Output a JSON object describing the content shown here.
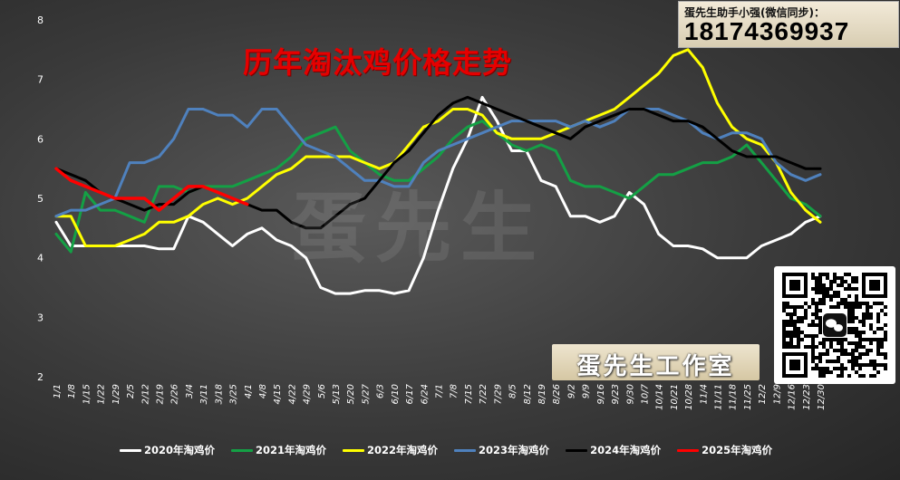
{
  "chart_data": {
    "type": "line",
    "title": "历年淘汰鸡价格走势",
    "xlabel": "",
    "ylabel": "",
    "ylim": [
      2,
      8
    ],
    "yticks": [
      "2",
      "3",
      "4",
      "5",
      "6",
      "7",
      "8"
    ],
    "x_tick_labels": [
      "1/1",
      "1/8",
      "1/15",
      "1/22",
      "1/29",
      "2/5",
      "2/12",
      "2/19",
      "2/26",
      "3/4",
      "3/11",
      "3/18",
      "3/25",
      "4/1",
      "4/8",
      "4/15",
      "4/22",
      "4/29",
      "5/6",
      "5/13",
      "5/20",
      "5/27",
      "6/3",
      "6/10",
      "6/17",
      "6/24",
      "7/1",
      "7/8",
      "7/15",
      "7/22",
      "7/29",
      "8/5",
      "8/12",
      "8/19",
      "8/26",
      "9/2",
      "9/9",
      "9/16",
      "9/23",
      "9/30",
      "10/7",
      "10/14",
      "10/21",
      "10/28",
      "11/4",
      "11/11",
      "11/18",
      "11/25",
      "12/2",
      "12/9",
      "12/16",
      "12/23",
      "12/30"
    ],
    "grid": false,
    "legend_position": "bottom",
    "series": [
      {
        "name": "2020年淘鸡价",
        "color": "#ffffff",
        "values": [
          4.6,
          4.2,
          4.2,
          4.2,
          4.2,
          4.2,
          4.2,
          4.15,
          4.15,
          4.7,
          4.6,
          4.4,
          4.2,
          4.4,
          4.5,
          4.3,
          4.2,
          4.0,
          3.5,
          3.4,
          3.4,
          3.45,
          3.45,
          3.4,
          3.45,
          4.0,
          4.8,
          5.5,
          6.0,
          6.7,
          6.3,
          5.8,
          5.8,
          5.3,
          5.2,
          4.7,
          4.7,
          4.6,
          4.7,
          5.1,
          4.9,
          4.4,
          4.2,
          4.2,
          4.15,
          4.0,
          4.0,
          4.0,
          4.2,
          4.3,
          4.4,
          4.6,
          4.7
        ]
      },
      {
        "name": "2021年淘鸡价",
        "color": "#14a045",
        "values": [
          4.4,
          4.1,
          5.1,
          4.8,
          4.8,
          4.7,
          4.6,
          5.2,
          5.2,
          5.1,
          5.2,
          5.2,
          5.2,
          5.3,
          5.4,
          5.5,
          5.7,
          6.0,
          6.1,
          6.2,
          5.8,
          5.6,
          5.4,
          5.3,
          5.3,
          5.5,
          5.7,
          6.0,
          6.2,
          6.3,
          6.1,
          5.9,
          5.8,
          5.9,
          5.8,
          5.3,
          5.2,
          5.2,
          5.1,
          5.0,
          5.2,
          5.4,
          5.4,
          5.5,
          5.6,
          5.6,
          5.7,
          5.9,
          5.6,
          5.3,
          5.0,
          4.9,
          4.7
        ]
      },
      {
        "name": "2022年淘鸡价",
        "color": "#ffff00",
        "values": [
          4.7,
          4.7,
          4.2,
          4.2,
          4.2,
          4.3,
          4.4,
          4.6,
          4.6,
          4.7,
          4.9,
          5.0,
          4.9,
          5.0,
          5.2,
          5.4,
          5.5,
          5.7,
          5.7,
          5.7,
          5.7,
          5.6,
          5.5,
          5.6,
          5.9,
          6.2,
          6.3,
          6.5,
          6.5,
          6.4,
          6.1,
          6.0,
          6.0,
          6.0,
          6.1,
          6.2,
          6.3,
          6.4,
          6.5,
          6.7,
          6.9,
          7.1,
          7.4,
          7.5,
          7.2,
          6.6,
          6.2,
          6.0,
          5.9,
          5.6,
          5.1,
          4.8,
          4.6
        ]
      },
      {
        "name": "2023年淘鸡价",
        "color": "#4f81bd",
        "values": [
          4.7,
          4.8,
          4.8,
          4.9,
          5.0,
          5.6,
          5.6,
          5.7,
          6.0,
          6.5,
          6.5,
          6.4,
          6.4,
          6.2,
          6.5,
          6.5,
          6.2,
          5.9,
          5.8,
          5.7,
          5.5,
          5.3,
          5.3,
          5.2,
          5.2,
          5.6,
          5.8,
          5.9,
          6.0,
          6.1,
          6.2,
          6.3,
          6.3,
          6.3,
          6.3,
          6.2,
          6.3,
          6.2,
          6.3,
          6.5,
          6.5,
          6.5,
          6.4,
          6.3,
          6.1,
          6.0,
          6.1,
          6.1,
          6.0,
          5.6,
          5.4,
          5.3,
          5.4
        ]
      },
      {
        "name": "2024年淘鸡价",
        "color": "#000000",
        "values": [
          5.5,
          5.4,
          5.3,
          5.1,
          5.0,
          4.9,
          4.8,
          4.9,
          4.9,
          5.1,
          5.2,
          5.1,
          5.0,
          4.9,
          4.8,
          4.8,
          4.6,
          4.5,
          4.5,
          4.7,
          4.9,
          5.0,
          5.3,
          5.6,
          5.8,
          6.1,
          6.4,
          6.6,
          6.7,
          6.6,
          6.5,
          6.4,
          6.3,
          6.2,
          6.1,
          6.0,
          6.2,
          6.3,
          6.4,
          6.5,
          6.5,
          6.4,
          6.3,
          6.3,
          6.2,
          6.0,
          5.8,
          5.7,
          5.7,
          5.7,
          5.6,
          5.5,
          5.5
        ]
      },
      {
        "name": "2025年淘鸡价",
        "color": "#ff0000",
        "values": [
          5.5,
          5.3,
          5.2,
          5.1,
          5.0,
          5.0,
          5.0,
          4.8,
          5.0,
          5.2,
          5.2,
          5.1,
          5.0,
          4.9
        ]
      }
    ]
  },
  "contact": {
    "line1": "蛋先生助手小强(微信同步)：",
    "phone": "18174369937"
  },
  "watermark": "蛋先生",
  "studio_label": "蛋先生工作室"
}
